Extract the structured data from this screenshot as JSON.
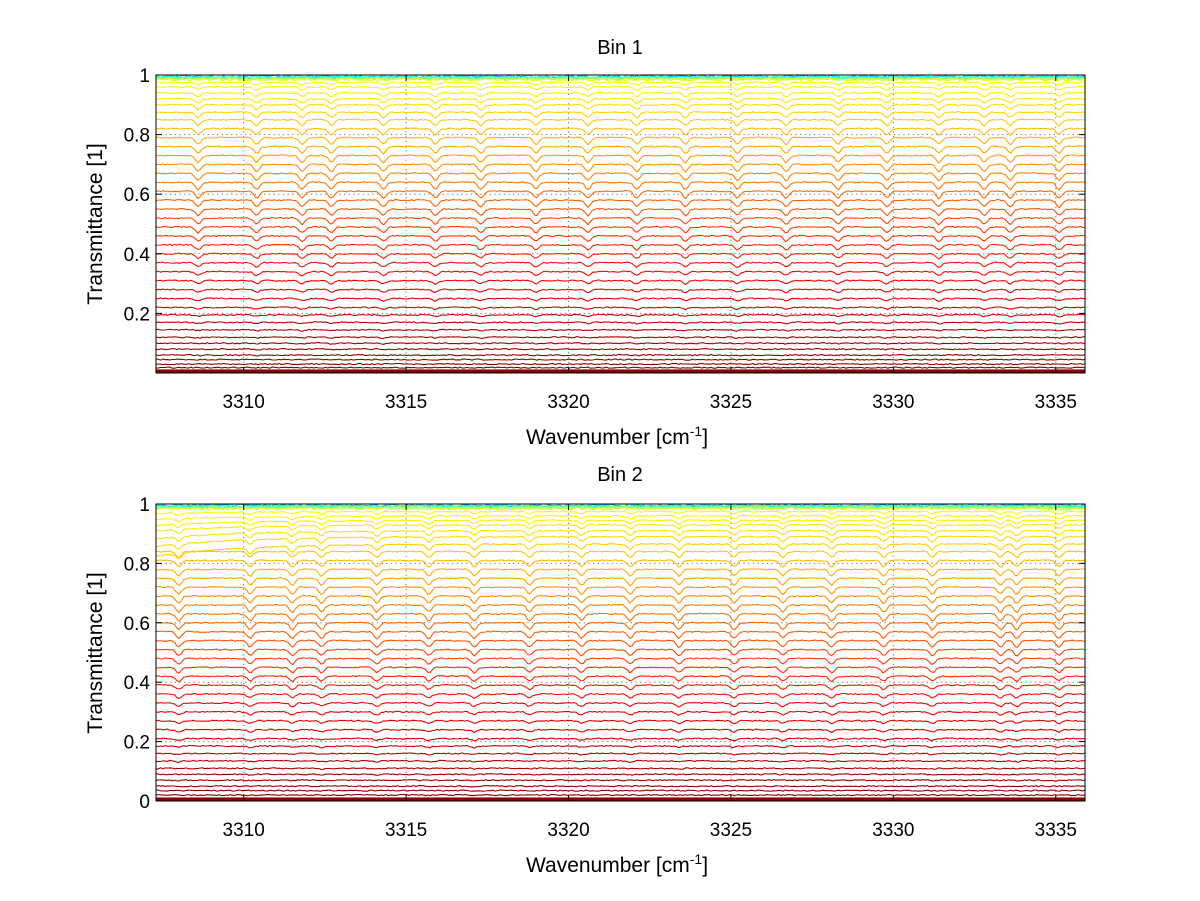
{
  "figure": {
    "chart_data": [
      {
        "type": "line",
        "title": "Bin 1",
        "xlabel": "Wavenumber [cm",
        "xlabel_sup": "-1",
        "xlabel_tail": "]",
        "ylabel": "Transmittance [1]",
        "xlim": [
          3307.3,
          3335.9
        ],
        "ylim": [
          0,
          1
        ],
        "xticks": [
          3310,
          3315,
          3320,
          3325,
          3330,
          3335
        ],
        "xtick_labels": [
          "3310",
          "3315",
          "3320",
          "3325",
          "3330",
          "3335"
        ],
        "yticks": [
          0.2,
          0.4,
          0.6,
          0.8,
          1
        ],
        "ytick_labels": [
          "0.2",
          "0.4",
          "0.6",
          "0.8",
          "1"
        ],
        "grid": true,
        "colormap": "jet",
        "series_count": 60,
        "series_description": "family of transmittance spectra, levels from 0 to ~0.99",
        "baseline_levels": [
          0.99,
          0.975,
          0.96,
          0.94,
          0.92,
          0.9,
          0.875,
          0.85,
          0.82,
          0.79,
          0.76,
          0.73,
          0.7,
          0.67,
          0.64,
          0.61,
          0.58,
          0.55,
          0.52,
          0.49,
          0.46,
          0.43,
          0.4,
          0.37,
          0.34,
          0.31,
          0.28,
          0.25,
          0.22,
          0.195,
          0.17,
          0.145,
          0.12,
          0.1,
          0.08,
          0.06,
          0.045,
          0.03,
          0.018,
          0.008
        ],
        "absorption_lines": [
          3308.6,
          3310.4,
          3311.8,
          3312.7,
          3314.3,
          3315.9,
          3317.3,
          3319.0,
          3320.6,
          3322.1,
          3323.6,
          3325.2,
          3326.7,
          3328.3,
          3329.8,
          3331.4,
          3332.8,
          3333.6,
          3335.1
        ]
      },
      {
        "type": "line",
        "title": "Bin 2",
        "xlabel": "Wavenumber [cm",
        "xlabel_sup": "-1",
        "xlabel_tail": "]",
        "ylabel": "Transmittance [1]",
        "xlim": [
          3307.3,
          3335.9
        ],
        "ylim": [
          0,
          1
        ],
        "xticks": [
          3310,
          3315,
          3320,
          3325,
          3330,
          3335
        ],
        "xtick_labels": [
          "3310",
          "3315",
          "3320",
          "3325",
          "3330",
          "3335"
        ],
        "yticks": [
          0,
          0.2,
          0.4,
          0.6,
          0.8,
          1
        ],
        "ytick_labels": [
          "0",
          "0.2",
          "0.4",
          "0.6",
          "0.8",
          "1"
        ],
        "grid": true,
        "colormap": "jet",
        "series_count": 60,
        "series_description": "family of transmittance spectra, levels from 0 to ~0.99",
        "baseline_levels": [
          0.99,
          0.975,
          0.96,
          0.945,
          0.93,
          0.91,
          0.89,
          0.865,
          0.84,
          0.81,
          0.78,
          0.75,
          0.72,
          0.69,
          0.66,
          0.63,
          0.6,
          0.57,
          0.54,
          0.51,
          0.48,
          0.45,
          0.42,
          0.39,
          0.36,
          0.33,
          0.3,
          0.27,
          0.24,
          0.21,
          0.185,
          0.16,
          0.135,
          0.11,
          0.09,
          0.07,
          0.05,
          0.035,
          0.02,
          0.008
        ],
        "absorption_lines": [
          3308.0,
          3310.2,
          3311.5,
          3312.4,
          3314.1,
          3315.7,
          3317.1,
          3318.8,
          3320.4,
          3321.9,
          3323.4,
          3325.1,
          3326.6,
          3328.1,
          3329.7,
          3331.2,
          3333.3,
          3333.8,
          3335.1
        ]
      }
    ]
  }
}
